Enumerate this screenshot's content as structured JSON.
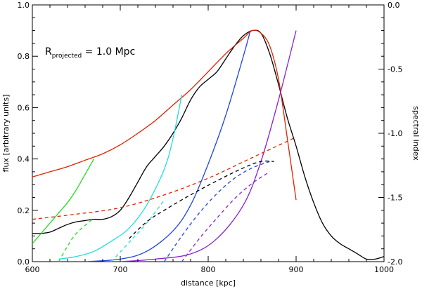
{
  "chart_data": {
    "type": "line",
    "title": "",
    "annotation": {
      "main": "R",
      "subscript": "projected",
      "rest": " = 1.0 Mpc"
    },
    "xlabel": "distance [kpc]",
    "ylabel": "flux [arbitrary units]",
    "ylabel_right": "spectral index",
    "xlim": [
      600,
      1000
    ],
    "ylim": [
      0.0,
      1.0
    ],
    "ylim_right": [
      -2.0,
      0.0
    ],
    "x_ticks": [
      600,
      700,
      800,
      900,
      1000
    ],
    "x_tick_labels": [
      "600",
      "700",
      "800",
      "900",
      "1000"
    ],
    "y_ticks": [
      0.0,
      0.2,
      0.4,
      0.6,
      0.8,
      1.0
    ],
    "y_tick_labels": [
      "0.0",
      "0.2",
      "0.4",
      "0.6",
      "0.8",
      "1.0"
    ],
    "y_right_ticks": [
      -2.0,
      -1.5,
      -1.0,
      -0.5,
      0.0
    ],
    "y_right_tick_labels": [
      "-2.0",
      "-1.5",
      "-1.0",
      "-0.5",
      "0.0"
    ],
    "series": [
      {
        "name": "total flux",
        "color": "#000000",
        "dash": false,
        "axis": "left",
        "x": [
          600,
          610,
          620,
          630,
          640,
          650,
          660,
          670,
          680,
          690,
          700,
          710,
          720,
          730,
          740,
          750,
          760,
          770,
          780,
          790,
          800,
          810,
          820,
          830,
          840,
          850,
          860,
          870,
          880,
          890,
          900,
          910,
          920,
          930,
          940,
          950,
          960,
          970,
          980,
          990,
          1000
        ],
        "y": [
          0.11,
          0.11,
          0.115,
          0.13,
          0.145,
          0.155,
          0.16,
          0.165,
          0.165,
          0.175,
          0.2,
          0.25,
          0.31,
          0.37,
          0.41,
          0.45,
          0.5,
          0.56,
          0.63,
          0.68,
          0.71,
          0.74,
          0.79,
          0.84,
          0.88,
          0.9,
          0.89,
          0.81,
          0.69,
          0.56,
          0.45,
          0.33,
          0.23,
          0.15,
          0.1,
          0.07,
          0.05,
          0.03,
          0.01,
          0.01,
          0.02
        ]
      },
      {
        "name": "flux red",
        "color": "#dd2200",
        "dash": false,
        "axis": "left",
        "x": [
          600,
          620,
          640,
          660,
          680,
          700,
          720,
          740,
          760,
          780,
          800,
          820,
          840,
          850,
          860,
          870,
          880,
          890,
          900
        ],
        "y": [
          0.33,
          0.35,
          0.37,
          0.395,
          0.42,
          0.455,
          0.5,
          0.55,
          0.61,
          0.67,
          0.74,
          0.81,
          0.87,
          0.9,
          0.89,
          0.84,
          0.71,
          0.48,
          0.24
        ]
      },
      {
        "name": "flux green",
        "color": "#22dd22",
        "dash": false,
        "axis": "left",
        "x": [
          600,
          610,
          620,
          630,
          640,
          650,
          660,
          670
        ],
        "y": [
          0.07,
          0.11,
          0.15,
          0.19,
          0.23,
          0.28,
          0.34,
          0.4
        ]
      },
      {
        "name": "flux cyan",
        "color": "#22dddd",
        "dash": false,
        "axis": "left",
        "x": [
          630,
          650,
          670,
          690,
          710,
          730,
          750,
          760,
          770
        ],
        "y": [
          0.01,
          0.02,
          0.04,
          0.08,
          0.13,
          0.22,
          0.36,
          0.48,
          0.65
        ]
      },
      {
        "name": "flux blue",
        "color": "#2244dd",
        "dash": false,
        "axis": "left",
        "x": [
          660,
          700,
          730,
          760,
          780,
          800,
          820,
          840,
          848
        ],
        "y": [
          0.0,
          0.01,
          0.04,
          0.12,
          0.22,
          0.38,
          0.57,
          0.8,
          0.9
        ]
      },
      {
        "name": "flux purple",
        "color": "#8822cc",
        "dash": false,
        "axis": "left",
        "x": [
          700,
          740,
          780,
          810,
          840,
          860,
          880,
          900
        ],
        "y": [
          0.0,
          0.01,
          0.03,
          0.09,
          0.22,
          0.39,
          0.63,
          0.9
        ]
      },
      {
        "name": "spectral index red",
        "color": "#dd2200",
        "dash": true,
        "axis": "right",
        "x": [
          600,
          650,
          700,
          750,
          800,
          850,
          900
        ],
        "y": [
          -1.67,
          -1.63,
          -1.58,
          -1.48,
          -1.35,
          -1.19,
          -1.03
        ]
      },
      {
        "name": "spectral index green",
        "color": "#22dd22",
        "dash": true,
        "axis": "right",
        "x": [
          630,
          640,
          650,
          670
        ],
        "y": [
          -2.0,
          -1.88,
          -1.78,
          -1.66
        ]
      },
      {
        "name": "spectral index cyan",
        "color": "#22dddd",
        "dash": true,
        "axis": "right",
        "x": [
          690,
          710,
          730,
          750
        ],
        "y": [
          -2.0,
          -1.85,
          -1.7,
          -1.52
        ]
      },
      {
        "name": "spectral index black",
        "color": "#000000",
        "dash": true,
        "axis": "right",
        "x": [
          710,
          730,
          750,
          780,
          810,
          840,
          860,
          875
        ],
        "y": [
          -1.82,
          -1.69,
          -1.6,
          -1.48,
          -1.37,
          -1.27,
          -1.22,
          -1.22
        ]
      },
      {
        "name": "spectral index blue",
        "color": "#2244dd",
        "dash": true,
        "axis": "right",
        "x": [
          750,
          770,
          790,
          810,
          830,
          850,
          870
        ],
        "y": [
          -2.0,
          -1.8,
          -1.62,
          -1.47,
          -1.35,
          -1.27,
          -1.22
        ]
      },
      {
        "name": "spectral index purple",
        "color": "#8822cc",
        "dash": true,
        "axis": "right",
        "x": [
          770,
          790,
          810,
          830,
          850,
          870
        ],
        "y": [
          -2.0,
          -1.82,
          -1.66,
          -1.51,
          -1.39,
          -1.3
        ]
      }
    ]
  }
}
